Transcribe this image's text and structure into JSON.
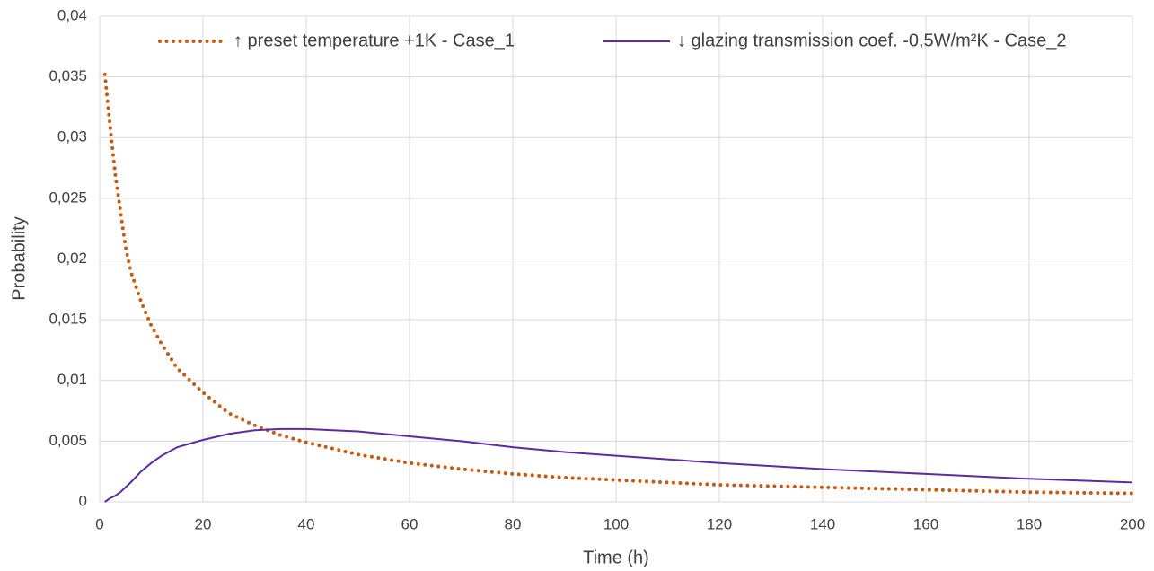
{
  "chart_data": {
    "type": "line",
    "x_label": "Time (h)",
    "y_label": "Probability",
    "x": [
      1,
      2,
      3,
      4,
      5,
      6,
      8,
      10,
      12,
      15,
      20,
      25,
      30,
      35,
      40,
      50,
      60,
      70,
      80,
      90,
      100,
      120,
      140,
      160,
      180,
      200
    ],
    "series": [
      {
        "name": "↑ preset temperature +1K - Case_1",
        "color": "#c55a11",
        "style": "dotted",
        "values": [
          0.0352,
          0.031,
          0.027,
          0.024,
          0.021,
          0.019,
          0.0165,
          0.0145,
          0.013,
          0.011,
          0.009,
          0.0073,
          0.0063,
          0.0055,
          0.0049,
          0.0039,
          0.0032,
          0.0027,
          0.0023,
          0.002,
          0.0018,
          0.0014,
          0.0012,
          0.001,
          0.0008,
          0.0007
        ]
      },
      {
        "name": "↓ glazing transmission coef. -0,5W/m²K - Case_2",
        "color": "#5b2c9f",
        "style": "solid",
        "values": [
          0,
          0.0003,
          0.0005,
          0.0008,
          0.0012,
          0.0016,
          0.0025,
          0.0032,
          0.0038,
          0.0045,
          0.0051,
          0.0056,
          0.0059,
          0.006,
          0.006,
          0.0058,
          0.0054,
          0.005,
          0.0045,
          0.0041,
          0.0038,
          0.0032,
          0.0027,
          0.0023,
          0.0019,
          0.0016
        ]
      }
    ],
    "xlim": [
      0,
      200
    ],
    "xticks": [
      0,
      20,
      40,
      60,
      80,
      100,
      120,
      140,
      160,
      180,
      200
    ],
    "ylim": [
      0,
      0.04
    ],
    "yticks": [
      0,
      {
        "value": 0.005,
        "label": "0,005"
      },
      {
        "value": 0.01,
        "label": "0,01"
      },
      {
        "value": 0.015,
        "label": "0,015"
      },
      {
        "value": 0.02,
        "label": "0,02"
      },
      {
        "value": 0.025,
        "label": "0,025"
      },
      {
        "value": 0.03,
        "label": "0,03"
      },
      {
        "value": 0.035,
        "label": "0,035"
      },
      {
        "value": 0.04,
        "label": "0,04"
      }
    ],
    "grid": true,
    "legend": "top"
  }
}
